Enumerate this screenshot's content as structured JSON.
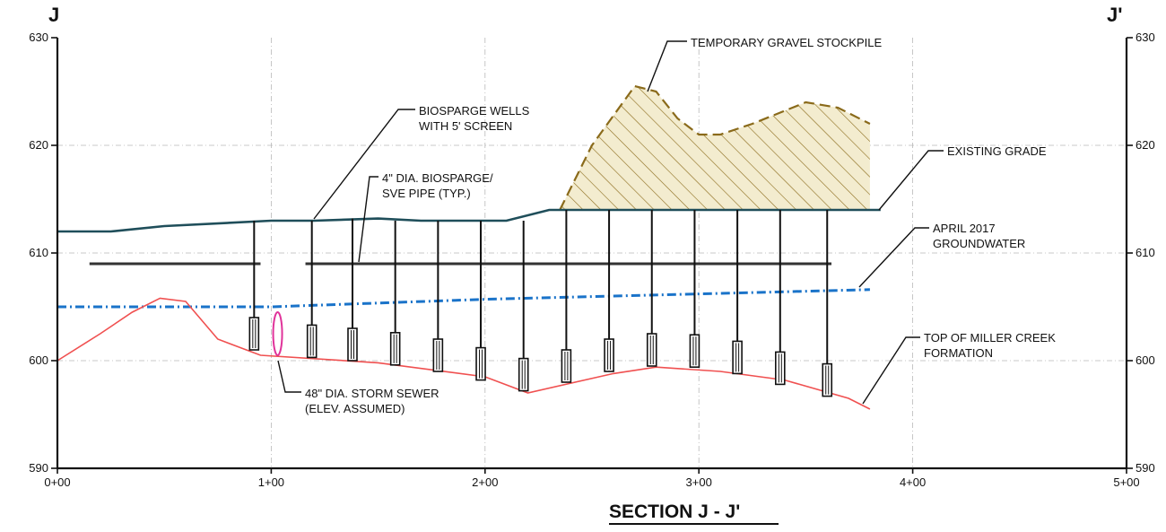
{
  "labels": {
    "left_end": "J",
    "right_end": "J'",
    "section_title": "SECTION J - J'",
    "notes": {
      "stockpile": "TEMPORARY GRAVEL STOCKPILE",
      "wells_line1": "BIOSPARGE WELLS",
      "wells_line2": "WITH 5' SCREEN",
      "pipe_line1": "4\" DIA. BIOSPARGE/",
      "pipe_line2": "SVE PIPE (TYP.)",
      "grade": "EXISTING GRADE",
      "gw_line1": "APRIL 2017",
      "gw_line2": "GROUNDWATER",
      "formation_line1": "TOP OF MILLER CREEK",
      "formation_line2": "FORMATION",
      "sewer_line1": "48\" DIA. STORM SEWER",
      "sewer_line2": "(ELEV. ASSUMED)"
    }
  },
  "axes": {
    "x_range": [
      0,
      500
    ],
    "x_ticks": [
      0,
      100,
      200,
      300,
      400,
      500
    ],
    "x_tick_labels": [
      "0+00",
      "1+00",
      "2+00",
      "3+00",
      "4+00",
      "5+00"
    ],
    "y_range": [
      590,
      630
    ],
    "y_ticks": [
      590,
      600,
      610,
      620,
      630
    ],
    "y_tick_labels": [
      "590",
      "600",
      "610",
      "620",
      "630"
    ]
  },
  "colors": {
    "grade": "#1f4e5a",
    "groundwater": "#1a73c9",
    "formation": "#f05050",
    "stockpile": "#8a6a1a",
    "stockpile_fill": "#f3eccf",
    "sewer": "#e0339a"
  },
  "profiles": {
    "existing_grade": [
      [
        0,
        612
      ],
      [
        25,
        612
      ],
      [
        50,
        612.5
      ],
      [
        100,
        613
      ],
      [
        120,
        613
      ],
      [
        150,
        613.2
      ],
      [
        170,
        613
      ],
      [
        210,
        613
      ],
      [
        230,
        614
      ],
      [
        385,
        614
      ]
    ],
    "groundwater": [
      [
        0,
        605
      ],
      [
        40,
        605
      ],
      [
        100,
        605
      ],
      [
        200,
        605.7
      ],
      [
        300,
        606.2
      ],
      [
        380,
        606.6
      ]
    ],
    "top_of_formation": [
      [
        0,
        600
      ],
      [
        20,
        602.5
      ],
      [
        35,
        604.5
      ],
      [
        48,
        605.8
      ],
      [
        60,
        605.5
      ],
      [
        75,
        602
      ],
      [
        95,
        600.5
      ],
      [
        150,
        599.8
      ],
      [
        200,
        598.5
      ],
      [
        220,
        597
      ],
      [
        260,
        598.8
      ],
      [
        280,
        599.4
      ],
      [
        310,
        599
      ],
      [
        340,
        598.2
      ],
      [
        370,
        596.5
      ],
      [
        380,
        595.5
      ]
    ],
    "stockpile": [
      [
        235,
        614
      ],
      [
        250,
        620
      ],
      [
        270,
        625.5
      ],
      [
        280,
        625
      ],
      [
        290,
        622.5
      ],
      [
        300,
        621
      ],
      [
        310,
        621
      ],
      [
        325,
        622
      ],
      [
        350,
        624
      ],
      [
        365,
        623.5
      ],
      [
        380,
        622
      ],
      [
        380,
        614
      ]
    ]
  },
  "wells": {
    "x": [
      92,
      119,
      138,
      158,
      178,
      198,
      218,
      238,
      258,
      278,
      298,
      318,
      338,
      360
    ],
    "screen_bottom": [
      601,
      600.3,
      600,
      599.6,
      599,
      598.2,
      597.2,
      598,
      599,
      599.5,
      599.4,
      598.8,
      597.8,
      596.7
    ],
    "top": [
      613,
      613,
      613.2,
      613,
      613,
      613,
      613,
      614,
      614,
      614,
      614,
      614,
      614,
      614
    ]
  },
  "pipes": [
    {
      "x_start": 15,
      "x_end": 95,
      "elev": 609
    },
    {
      "x_start": 116,
      "x_end": 362,
      "elev": 609
    }
  ],
  "sewer": {
    "x": 103,
    "elev": 602.5
  }
}
